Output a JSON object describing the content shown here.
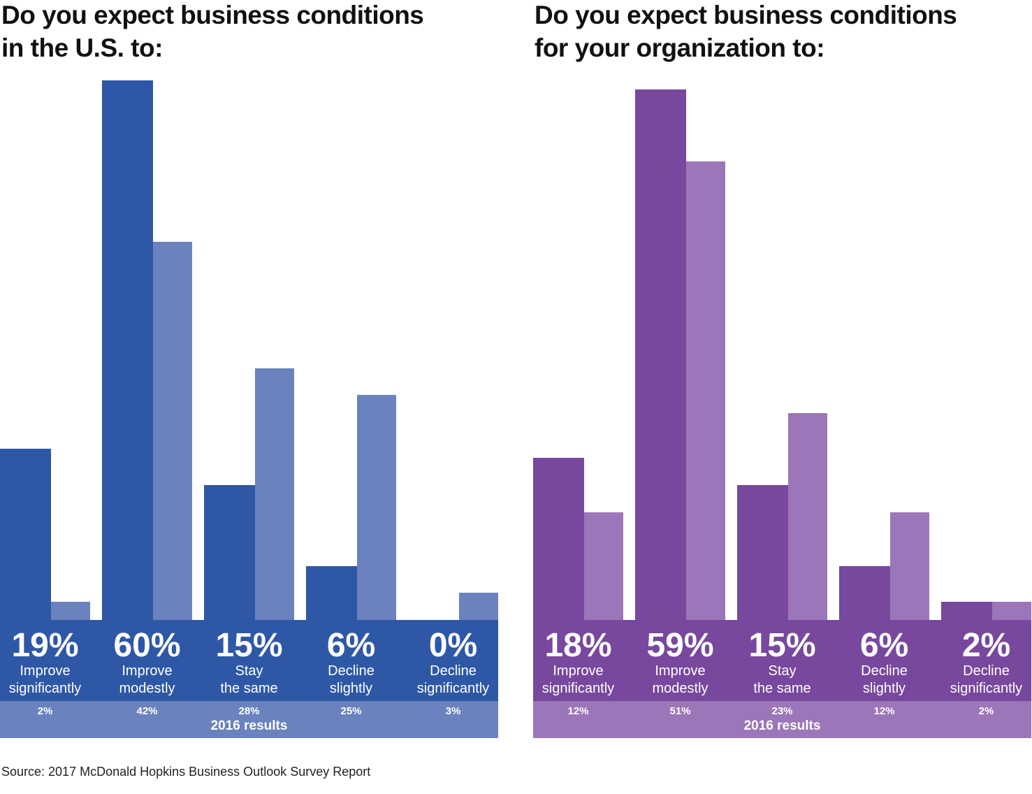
{
  "chart_data": [
    {
      "type": "bar",
      "title": "Do you expect business conditions\nin the U.S. to:",
      "categories": [
        "Improve\nsignificantly",
        "Improve\nmodestly",
        "Stay\nthe same",
        "Decline\nslightly",
        "Decline\nsignificantly"
      ],
      "series": [
        {
          "color": "#2e58a6",
          "values": [
            19,
            60,
            15,
            6,
            0
          ],
          "value_labels": [
            "19%",
            "60%",
            "15%",
            "6%",
            "0%"
          ]
        },
        {
          "name": "2016 results",
          "color": "#6a82bd",
          "values": [
            2,
            42,
            28,
            25,
            3
          ],
          "value_labels": [
            "2%",
            "42%",
            "28%",
            "25%",
            "3%"
          ]
        }
      ]
    },
    {
      "type": "bar",
      "title": "Do you expect business conditions\nfor your organization to:",
      "categories": [
        "Improve\nsignificantly",
        "Improve\nmodestly",
        "Stay\nthe same",
        "Decline\nslightly",
        "Decline\nsignificantly"
      ],
      "series": [
        {
          "color": "#77489d",
          "values": [
            18,
            59,
            15,
            6,
            2
          ],
          "value_labels": [
            "18%",
            "59%",
            "15%",
            "6%",
            "2%"
          ]
        },
        {
          "name": "2016 results",
          "color": "#9b76b8",
          "values": [
            12,
            51,
            23,
            12,
            2
          ],
          "value_labels": [
            "12%",
            "51%",
            "23%",
            "12%",
            "2%"
          ]
        }
      ]
    }
  ],
  "source": "Source: 2017 McDonald Hopkins Business Outlook Survey Report"
}
